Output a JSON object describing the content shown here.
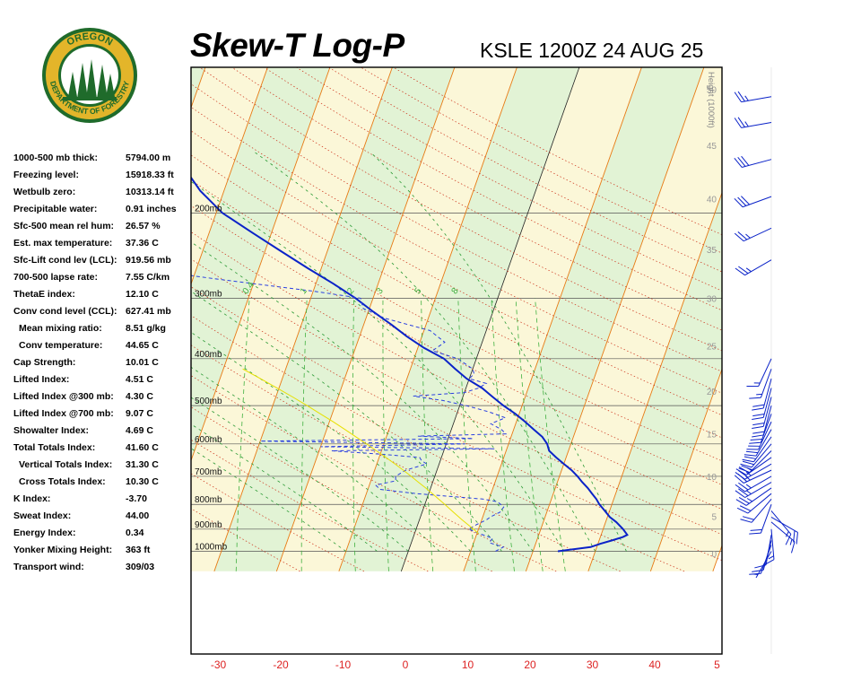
{
  "header": {
    "title": "Skew-T Log-P",
    "station": "KSLE 1200Z 24 AUG 25"
  },
  "logo": {
    "top_text": "OREGON",
    "bottom_text": "DEPARTMENT OF FORESTRY",
    "colors": {
      "ring": "#1f6b2b",
      "gold": "#e3b52a",
      "tree": "#1f6b2b",
      "sky": "#ffffff"
    }
  },
  "indices": [
    {
      "label": "1000-500 mb thick:",
      "value": "5794.00 m",
      "indent": false
    },
    {
      "label": "Freezing level:",
      "value": "15918.33 ft",
      "indent": false
    },
    {
      "label": "Wetbulb zero:",
      "value": "10313.14 ft",
      "indent": false
    },
    {
      "label": "Precipitable water:",
      "value": "0.91 inches",
      "indent": false
    },
    {
      "label": "Sfc-500 mean rel hum:",
      "value": "26.57 %",
      "indent": false
    },
    {
      "label": "Est. max temperature:",
      "value": "37.36 C",
      "indent": false
    },
    {
      "label": "Sfc-Lift cond lev (LCL):",
      "value": "919.56 mb",
      "indent": false
    },
    {
      "label": "700-500 lapse rate:",
      "value": "7.55 C/km",
      "indent": false
    },
    {
      "label": "ThetaE index:",
      "value": "12.10 C",
      "indent": false
    },
    {
      "label": "Conv cond level (CCL):",
      "value": "627.41 mb",
      "indent": false
    },
    {
      "label": "Mean mixing ratio:",
      "value": "8.51 g/kg",
      "indent": true
    },
    {
      "label": "Conv temperature:",
      "value": "44.65 C",
      "indent": true
    },
    {
      "label": "Cap Strength:",
      "value": "10.01 C",
      "indent": false
    },
    {
      "label": "Lifted Index:",
      "value": "4.51 C",
      "indent": false
    },
    {
      "label": "Lifted Index @300 mb:",
      "value": "4.30 C",
      "indent": false
    },
    {
      "label": "Lifted Index @700 mb:",
      "value": "9.07 C",
      "indent": false
    },
    {
      "label": "Showalter Index:",
      "value": "4.69 C",
      "indent": false
    },
    {
      "label": "Total Totals Index:",
      "value": "41.60 C",
      "indent": false
    },
    {
      "label": "Vertical Totals Index:",
      "value": "31.30 C",
      "indent": true
    },
    {
      "label": "Cross Totals Index:",
      "value": "10.30 C",
      "indent": true
    },
    {
      "label": "K Index:",
      "value": "-3.70",
      "indent": false
    },
    {
      "label": "Sweat Index:",
      "value": "44.00",
      "indent": false
    },
    {
      "label": "Energy Index:",
      "value": "0.34",
      "indent": false
    },
    {
      "label": "Yonker Mixing Height:",
      "value": "363 ft",
      "indent": false
    },
    {
      "label": "Transport wind:",
      "value": "309/03",
      "indent": false
    }
  ],
  "chart_data": {
    "type": "line",
    "title": "Skew-T Log-P",
    "subtitle": "KSLE 1200Z 24 AUG 25",
    "xlabel": "",
    "ylabel": "",
    "x_ticks": [
      "-30",
      "-20",
      "-10",
      "0",
      "10",
      "20",
      "30",
      "40",
      "5"
    ],
    "pressure_levels": [
      {
        "p": 200,
        "label": "200mb"
      },
      {
        "p": 300,
        "label": "300mb"
      },
      {
        "p": 400,
        "label": "400mb"
      },
      {
        "p": 500,
        "label": "500mb"
      },
      {
        "p": 600,
        "label": "600mb"
      },
      {
        "p": 700,
        "label": "700mb"
      },
      {
        "p": 800,
        "label": "800mb"
      },
      {
        "p": 900,
        "label": "900mb"
      },
      {
        "p": 1000,
        "label": "1000mb"
      }
    ],
    "height_axis": {
      "label": "Height (1000ft)",
      "ticks": [
        {
          "p": 1010,
          "label": "0"
        },
        {
          "p": 847,
          "label": "5"
        },
        {
          "p": 700,
          "label": "10"
        },
        {
          "p": 572,
          "label": "15"
        },
        {
          "p": 467,
          "label": "20"
        },
        {
          "p": 376,
          "label": "25"
        },
        {
          "p": 300,
          "label": "30"
        },
        {
          "p": 238,
          "label": "35"
        },
        {
          "p": 187,
          "label": "40"
        },
        {
          "p": 145,
          "label": "45"
        },
        {
          "p": 111,
          "label": "50"
        }
      ]
    },
    "mixing_ratio_labels": [
      "0.4",
      "1",
      "2",
      "3",
      "5",
      "8"
    ],
    "mixing_ratios": [
      0.4,
      1,
      2,
      3,
      5,
      8,
      12,
      16,
      20
    ],
    "isotherms_c": [
      -110,
      -100,
      -90,
      -80,
      -70,
      -60,
      -50,
      -40,
      -30,
      -20,
      -10,
      0,
      10,
      20,
      30,
      40,
      50
    ],
    "dry_adiabats_k": [
      250,
      260,
      270,
      280,
      290,
      300,
      310,
      320,
      330,
      340,
      350,
      360,
      370,
      380,
      390,
      400,
      410,
      420,
      430,
      440,
      450,
      460,
      470
    ],
    "moist_adiabats_c": [
      -10,
      -5,
      0,
      5,
      10,
      15,
      20,
      25,
      30,
      35
    ],
    "colors": {
      "temperature": "#0a22c8",
      "dewpoint": "#2a3fe0",
      "parcel": "#e6e000",
      "isotherm": "#e87a14",
      "dry_adiabat": "#cc3018",
      "moist_adiabat": "#2a9a34",
      "mixing_ratio": "#40b040",
      "isobar": "#555555",
      "band_green": "#e2f3d5",
      "band_yellow": "#fbf7d8",
      "frame_bg": "#ffffff",
      "x_tick_label": "#dd2222"
    },
    "series": [
      {
        "name": "",
        "kind": "temperature",
        "points": [
          [
            1000,
            24
          ],
          [
            990,
            26.5
          ],
          [
            980,
            29
          ],
          [
            965,
            30.4
          ],
          [
            950,
            32
          ],
          [
            935,
            33.6
          ],
          [
            925,
            34.2
          ],
          [
            900,
            33.2
          ],
          [
            870,
            31.7
          ],
          [
            850,
            30.4
          ],
          [
            820,
            29
          ],
          [
            800,
            28
          ],
          [
            780,
            27.2
          ],
          [
            760,
            26.2
          ],
          [
            740,
            25.2
          ],
          [
            720,
            24
          ],
          [
            700,
            22.9
          ],
          [
            680,
            21.6
          ],
          [
            660,
            20
          ],
          [
            640,
            18.4
          ],
          [
            620,
            16.9
          ],
          [
            600,
            16.2
          ],
          [
            580,
            15
          ],
          [
            560,
            13.2
          ],
          [
            540,
            11.4
          ],
          [
            520,
            9.4
          ],
          [
            500,
            7
          ],
          [
            480,
            4.8
          ],
          [
            460,
            2.6
          ],
          [
            440,
            -0.4
          ],
          [
            420,
            -2.8
          ],
          [
            400,
            -5.2
          ],
          [
            380,
            -9
          ],
          [
            360,
            -12.4
          ],
          [
            340,
            -15.6
          ],
          [
            320,
            -19.2
          ],
          [
            300,
            -22.8
          ],
          [
            280,
            -27.2
          ],
          [
            260,
            -32.2
          ],
          [
            240,
            -37.4
          ],
          [
            220,
            -43
          ],
          [
            200,
            -49
          ],
          [
            180,
            -53.8
          ],
          [
            160,
            -58
          ],
          [
            140,
            -62.2
          ],
          [
            120,
            -66.2
          ],
          [
            105,
            -69
          ]
        ]
      },
      {
        "name": "",
        "kind": "dewpoint",
        "points": [
          [
            1000,
            14
          ],
          [
            980,
            15
          ],
          [
            960,
            12.5
          ],
          [
            940,
            12.8
          ],
          [
            920,
            10.5
          ],
          [
            900,
            8.4
          ],
          [
            880,
            9.5
          ],
          [
            860,
            10.8
          ],
          [
            850,
            11.2
          ],
          [
            830,
            12.5
          ],
          [
            810,
            12.8
          ],
          [
            790,
            11.5
          ],
          [
            780,
            9
          ],
          [
            760,
            -2
          ],
          [
            745,
            -8
          ],
          [
            730,
            -9
          ],
          [
            715,
            -6
          ],
          [
            700,
            -6.3
          ],
          [
            680,
            -5
          ],
          [
            660,
            -2
          ],
          [
            650,
            -3
          ],
          [
            640,
            -3.5
          ],
          [
            630,
            -10
          ],
          [
            620,
            -18
          ],
          [
            614,
            8
          ],
          [
            608,
            -20
          ],
          [
            600,
            3
          ],
          [
            592,
            -30
          ],
          [
            585,
            4
          ],
          [
            578,
            -5
          ],
          [
            572,
            9
          ],
          [
            560,
            8
          ],
          [
            545,
            6
          ],
          [
            530,
            8
          ],
          [
            515,
            5
          ],
          [
            500,
            1
          ],
          [
            488,
            -3
          ],
          [
            478,
            -8
          ],
          [
            470,
            0
          ],
          [
            460,
            2
          ],
          [
            450,
            3
          ],
          [
            440,
            0
          ],
          [
            430,
            0.5
          ],
          [
            420,
            0
          ],
          [
            400,
            -3
          ],
          [
            385,
            -7.5
          ],
          [
            370,
            -6
          ],
          [
            350,
            -9
          ],
          [
            330,
            -17
          ],
          [
            315,
            -21
          ],
          [
            300,
            -22
          ],
          [
            290,
            -30
          ],
          [
            280,
            -40
          ],
          [
            270,
            -50
          ],
          [
            255,
            -60
          ],
          [
            240,
            -66
          ],
          [
            220,
            -71
          ],
          [
            200,
            -76
          ],
          [
            180,
            -78
          ],
          [
            160,
            -78
          ],
          [
            140,
            -79
          ],
          [
            120,
            -80
          ],
          [
            105,
            -80
          ]
        ]
      },
      {
        "name": "",
        "kind": "parcel",
        "points": [
          [
            920,
            10.3
          ],
          [
            900,
            9.2
          ],
          [
            880,
            8
          ],
          [
            860,
            6.8
          ],
          [
            840,
            5.6
          ],
          [
            820,
            4.4
          ],
          [
            800,
            3.2
          ],
          [
            780,
            1.9
          ],
          [
            760,
            0.6
          ],
          [
            740,
            -0.8
          ],
          [
            720,
            -2.3
          ],
          [
            700,
            -3.8
          ],
          [
            680,
            -5.4
          ],
          [
            660,
            -7.1
          ],
          [
            640,
            -8.9
          ],
          [
            620,
            -10.8
          ],
          [
            600,
            -12.8
          ],
          [
            580,
            -14.9
          ],
          [
            560,
            -17.1
          ],
          [
            540,
            -19.4
          ],
          [
            520,
            -21.9
          ],
          [
            500,
            -24.5
          ],
          [
            480,
            -27.3
          ],
          [
            460,
            -30.3
          ],
          [
            440,
            -33.5
          ],
          [
            420,
            -36.9
          ]
        ]
      }
    ],
    "wind_barbs": [
      {
        "p": 1000,
        "dir": 210,
        "spd": 5
      },
      {
        "p": 970,
        "dir": 200,
        "spd": 10
      },
      {
        "p": 950,
        "dir": 195,
        "spd": 10
      },
      {
        "p": 925,
        "dir": 190,
        "spd": 10
      },
      {
        "p": 900,
        "dir": 175,
        "spd": 15
      },
      {
        "p": 870,
        "dir": 130,
        "spd": 15
      },
      {
        "p": 850,
        "dir": 120,
        "spd": 20
      },
      {
        "p": 825,
        "dir": 140,
        "spd": 15
      },
      {
        "p": 800,
        "dir": 200,
        "spd": 20
      },
      {
        "p": 780,
        "dir": 220,
        "spd": 20
      },
      {
        "p": 760,
        "dir": 230,
        "spd": 20
      },
      {
        "p": 740,
        "dir": 235,
        "spd": 25
      },
      {
        "p": 720,
        "dir": 240,
        "spd": 25
      },
      {
        "p": 700,
        "dir": 240,
        "spd": 25
      },
      {
        "p": 680,
        "dir": 245,
        "spd": 25
      },
      {
        "p": 660,
        "dir": 240,
        "spd": 25
      },
      {
        "p": 640,
        "dir": 235,
        "spd": 25
      },
      {
        "p": 620,
        "dir": 225,
        "spd": 20
      },
      {
        "p": 600,
        "dir": 220,
        "spd": 20
      },
      {
        "p": 580,
        "dir": 215,
        "spd": 20
      },
      {
        "p": 560,
        "dir": 210,
        "spd": 20
      },
      {
        "p": 540,
        "dir": 205,
        "spd": 20
      },
      {
        "p": 520,
        "dir": 200,
        "spd": 20
      },
      {
        "p": 500,
        "dir": 195,
        "spd": 20
      },
      {
        "p": 480,
        "dir": 195,
        "spd": 20
      },
      {
        "p": 460,
        "dir": 195,
        "spd": 20
      },
      {
        "p": 440,
        "dir": 195,
        "spd": 20
      },
      {
        "p": 420,
        "dir": 200,
        "spd": 15
      },
      {
        "p": 400,
        "dir": 205,
        "spd": 15
      },
      {
        "p": 250,
        "dir": 240,
        "spd": 25
      },
      {
        "p": 215,
        "dir": 245,
        "spd": 25
      },
      {
        "p": 185,
        "dir": 250,
        "spd": 30
      },
      {
        "p": 155,
        "dir": 255,
        "spd": 30
      },
      {
        "p": 130,
        "dir": 260,
        "spd": 25
      },
      {
        "p": 115,
        "dir": 260,
        "spd": 25
      }
    ]
  }
}
